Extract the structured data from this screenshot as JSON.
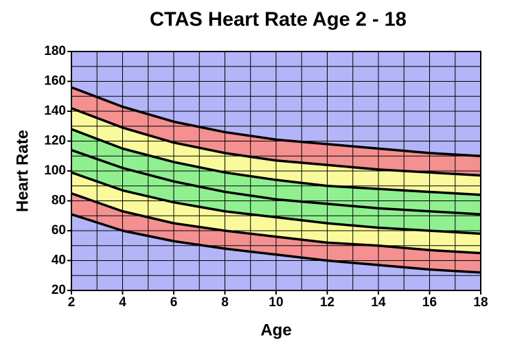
{
  "chart_data": {
    "type": "line",
    "title": "CTAS Heart Rate Age 2 - 18",
    "xlabel": "Age",
    "ylabel": "Heart Rate",
    "x": [
      2,
      4,
      6,
      8,
      10,
      12,
      14,
      16,
      18
    ],
    "series": [
      {
        "color": "#000000",
        "values": [
          156,
          143,
          133,
          126,
          121,
          118,
          115,
          112,
          110
        ]
      },
      {
        "color": "#000000",
        "values": [
          142,
          129,
          119,
          112,
          107,
          104,
          101,
          99,
          97
        ]
      },
      {
        "color": "#000000",
        "values": [
          128,
          115,
          106,
          99,
          94,
          90,
          88,
          86,
          84
        ]
      },
      {
        "color": "#000000",
        "values": [
          114,
          102,
          93,
          86,
          81,
          78,
          75,
          73,
          71
        ]
      },
      {
        "color": "#000000",
        "values": [
          99,
          87,
          79,
          73,
          69,
          65,
          62,
          60,
          58
        ]
      },
      {
        "color": "#000000",
        "values": [
          85,
          73,
          65,
          60,
          56,
          52,
          50,
          47,
          45
        ]
      },
      {
        "color": "#000000",
        "values": [
          71,
          60,
          53,
          48,
          44,
          40,
          37,
          34,
          32
        ]
      }
    ],
    "band_colors": [
      "#f49090",
      "#fafa9c",
      "#90f090",
      "#90f090",
      "#fafa9c",
      "#f49090"
    ],
    "background": "#b4b4f8",
    "xlim": [
      2,
      18
    ],
    "xticks": [
      2,
      4,
      6,
      8,
      10,
      12,
      14,
      16,
      18
    ],
    "xminorticks": [
      3,
      5,
      7,
      9,
      11,
      13,
      15,
      17
    ],
    "ylim": [
      20,
      180
    ],
    "yticks": [
      20,
      40,
      60,
      80,
      100,
      120,
      140,
      160,
      180
    ],
    "yminorticks": [
      30,
      50,
      70,
      90,
      110,
      130,
      150,
      170
    ],
    "grid": true
  }
}
